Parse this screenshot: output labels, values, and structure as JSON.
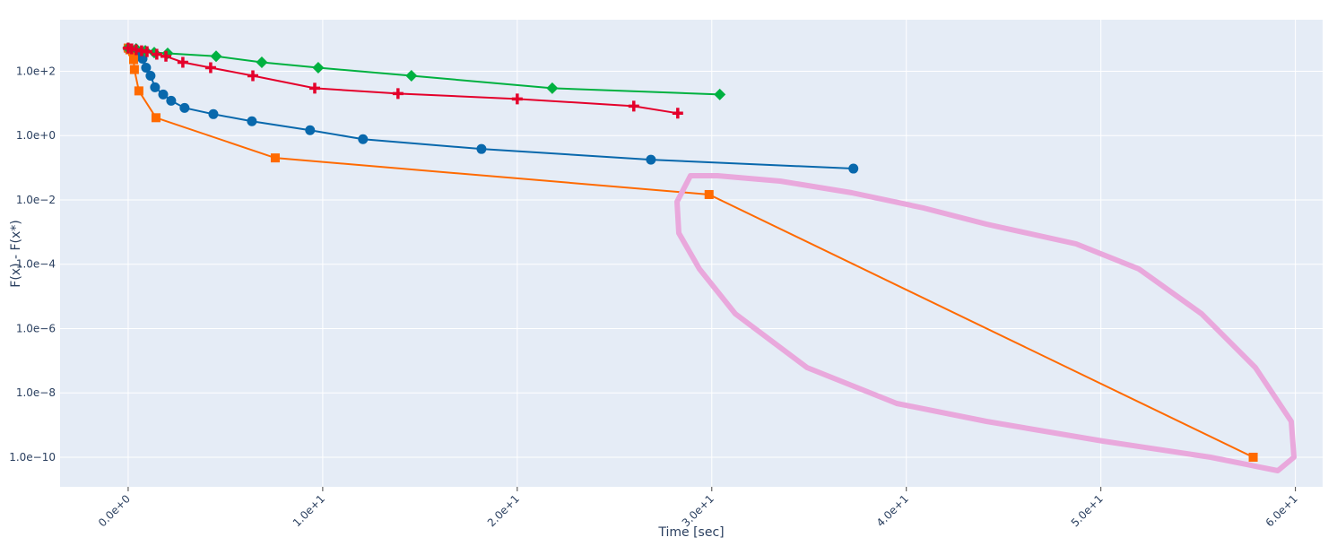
{
  "chart_data": {
    "type": "line",
    "xlabel": "Time [sec]",
    "ylabel": "F(x) - F(x*)",
    "xlim": [
      -3.5,
      61.4
    ],
    "ylim": [
      1.2e-11,
      4000
    ],
    "ylog": true,
    "grid": true,
    "xticks": [
      {
        "value": 0,
        "label": "0.0e+0"
      },
      {
        "value": 10,
        "label": "1.0e+1"
      },
      {
        "value": 20,
        "label": "2.0e+1"
      },
      {
        "value": 30,
        "label": "3.0e+1"
      },
      {
        "value": 40,
        "label": "4.0e+1"
      },
      {
        "value": 50,
        "label": "5.0e+1"
      },
      {
        "value": 60,
        "label": "6.0e+1"
      }
    ],
    "yticks": [
      {
        "value": 1e-10,
        "label": "1.0e−10"
      },
      {
        "value": 1e-08,
        "label": "1.0e−8"
      },
      {
        "value": 1e-06,
        "label": "1.0e−6"
      },
      {
        "value": 0.0001,
        "label": "1.0e−4"
      },
      {
        "value": 0.01,
        "label": "1.0e−2"
      },
      {
        "value": 1,
        "label": "1.0e+0"
      },
      {
        "value": 100,
        "label": "1.0e+2"
      }
    ],
    "series": [
      {
        "color": "#0868ac",
        "marker": "circle",
        "x": [
          0,
          0.14,
          0.32,
          0.55,
          0.74,
          0.92,
          1.15,
          1.38,
          1.8,
          2.21,
          2.9,
          4.38,
          6.36,
          9.35,
          12.07,
          18.16,
          26.87,
          37.28
        ],
        "values": [
          495,
          464,
          435,
          359,
          245,
          129,
          72.6,
          31.6,
          19,
          12.1,
          7.26,
          4.64,
          2.78,
          1.47,
          0.774,
          0.383,
          0.178,
          0.094
        ]
      },
      {
        "color": "#ff6a00",
        "marker": "square",
        "x": [
          0,
          0.09,
          0.23,
          0.28,
          0.32,
          0.55,
          1.43,
          7.56,
          29.86,
          57.83
        ],
        "values": [
          527,
          464,
          408,
          230,
          113,
          24.5,
          3.59,
          0.202,
          0.0147,
          1e-10
        ]
      },
      {
        "color": "#00b140",
        "marker": "diamond",
        "x": [
          0,
          0.41,
          0.88,
          1.34,
          2.03,
          4.52,
          6.87,
          9.77,
          14.56,
          21.8,
          30.41
        ],
        "values": [
          527,
          495,
          435,
          382,
          359,
          292,
          190,
          129,
          72.6,
          29.7,
          19
        ]
      },
      {
        "color": "#e4002b",
        "marker": "cross",
        "x": [
          0,
          0.18,
          0.41,
          0.69,
          0.97,
          1.47,
          1.94,
          2.81,
          4.24,
          6.41,
          9.59,
          13.87,
          20,
          25.99,
          28.25
        ],
        "values": [
          527,
          495,
          464,
          435,
          408,
          337,
          292,
          190,
          129,
          72.6,
          29.7,
          20.2,
          13.8,
          8.26,
          4.95
        ]
      }
    ]
  }
}
